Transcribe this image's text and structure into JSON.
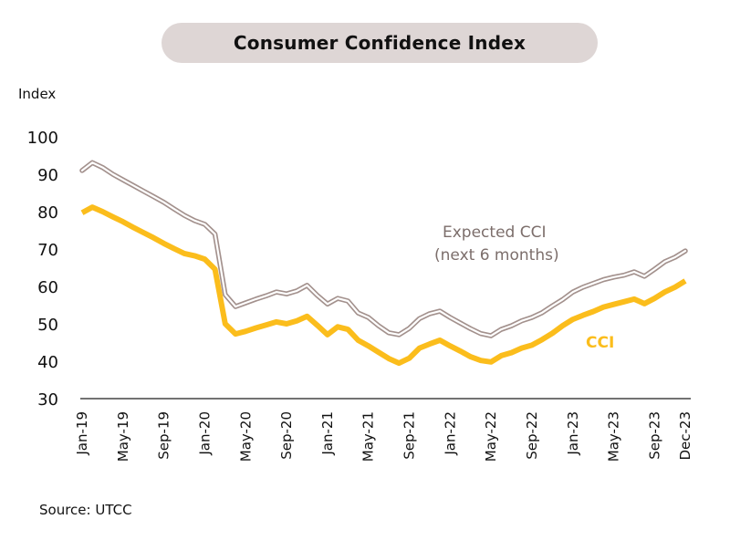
{
  "title": "Consumer Confidence Index",
  "source": "Source: UTCC",
  "colors": {
    "cci": "#fbbd1c",
    "expected_outline": "#a3918d",
    "expected_fill": "#ffffff",
    "title_pill": "#ded6d5",
    "axis": "#444444"
  },
  "chart_data": {
    "type": "line",
    "title": "Consumer Confidence Index",
    "xlabel": "",
    "ylabel": "Index",
    "ylim": [
      30,
      100
    ],
    "yticks": [
      30,
      40,
      50,
      60,
      70,
      80,
      90,
      100
    ],
    "grid": false,
    "legend": "inline annotations",
    "x": [
      "Jan-19",
      "Feb-19",
      "Mar-19",
      "Apr-19",
      "May-19",
      "Jun-19",
      "Jul-19",
      "Aug-19",
      "Sep-19",
      "Oct-19",
      "Nov-19",
      "Dec-19",
      "Jan-20",
      "Feb-20",
      "Mar-20",
      "Apr-20",
      "May-20",
      "Jun-20",
      "Jul-20",
      "Aug-20",
      "Sep-20",
      "Oct-20",
      "Nov-20",
      "Dec-20",
      "Jan-21",
      "Feb-21",
      "Mar-21",
      "Apr-21",
      "May-21",
      "Jun-21",
      "Jul-21",
      "Aug-21",
      "Sep-21",
      "Oct-21",
      "Nov-21",
      "Dec-21",
      "Jan-22",
      "Feb-22",
      "Mar-22",
      "Apr-22",
      "May-22",
      "Jun-22",
      "Jul-22",
      "Aug-22",
      "Sep-22",
      "Oct-22",
      "Nov-22",
      "Dec-22",
      "Jan-23",
      "Feb-23",
      "Mar-23",
      "Apr-23",
      "May-23",
      "Jun-23",
      "Jul-23",
      "Aug-23",
      "Sep-23",
      "Oct-23",
      "Nov-23",
      "Dec-23"
    ],
    "xtick_labels": [
      {
        "index": 0,
        "label": "Jan-19"
      },
      {
        "index": 4,
        "label": "May-19"
      },
      {
        "index": 8,
        "label": "Sep-19"
      },
      {
        "index": 12,
        "label": "Jan-20"
      },
      {
        "index": 16,
        "label": "May-20"
      },
      {
        "index": 20,
        "label": "Sep-20"
      },
      {
        "index": 24,
        "label": "Jan-21"
      },
      {
        "index": 28,
        "label": "May-21"
      },
      {
        "index": 32,
        "label": "Sep-21"
      },
      {
        "index": 36,
        "label": "Jan-22"
      },
      {
        "index": 40,
        "label": "May-22"
      },
      {
        "index": 44,
        "label": "Sep-22"
      },
      {
        "index": 48,
        "label": "Jan-23"
      },
      {
        "index": 52,
        "label": "May-23"
      },
      {
        "index": 56,
        "label": "Sep-23"
      },
      {
        "index": 59,
        "label": "Dec-23"
      }
    ],
    "series": [
      {
        "name": "Expected CCI (next 6 months)",
        "annotation": [
          "Expected CCI",
          "(next 6 months)"
        ],
        "style": "outline",
        "values": [
          91.0,
          93.1,
          91.8,
          90.0,
          88.5,
          87.0,
          85.5,
          84.0,
          82.5,
          80.7,
          79.0,
          77.6,
          76.6,
          74.0,
          57.8,
          54.6,
          55.6,
          56.6,
          57.5,
          58.5,
          58.0,
          58.8,
          60.3,
          57.6,
          55.3,
          56.8,
          56.1,
          52.9,
          51.7,
          49.5,
          47.6,
          47.1,
          48.8,
          51.4,
          52.7,
          53.4,
          51.7,
          50.2,
          48.7,
          47.4,
          46.8,
          48.5,
          49.5,
          50.8,
          51.7,
          53.0,
          54.8,
          56.5,
          58.5,
          59.8,
          60.8,
          61.8,
          62.5,
          63.0,
          63.9,
          62.7,
          64.6,
          66.6,
          67.8,
          69.5
        ]
      },
      {
        "name": "CCI",
        "annotation": [
          "CCI"
        ],
        "style": "solid",
        "values": [
          79.7,
          81.2,
          80.0,
          78.6,
          77.3,
          75.8,
          74.4,
          73.0,
          71.5,
          70.1,
          68.8,
          68.2,
          67.3,
          64.6,
          50.0,
          47.3,
          48.0,
          48.9,
          49.7,
          50.5,
          50.0,
          50.8,
          52.0,
          49.6,
          47.1,
          49.2,
          48.5,
          45.6,
          44.1,
          42.4,
          40.7,
          39.5,
          40.8,
          43.5,
          44.6,
          45.6,
          44.1,
          42.7,
          41.2,
          40.2,
          39.8,
          41.5,
          42.3,
          43.5,
          44.3,
          45.8,
          47.5,
          49.5,
          51.2,
          52.3,
          53.3,
          54.5,
          55.2,
          55.9,
          56.6,
          55.4,
          56.8,
          58.5,
          59.8,
          61.5
        ]
      }
    ]
  }
}
